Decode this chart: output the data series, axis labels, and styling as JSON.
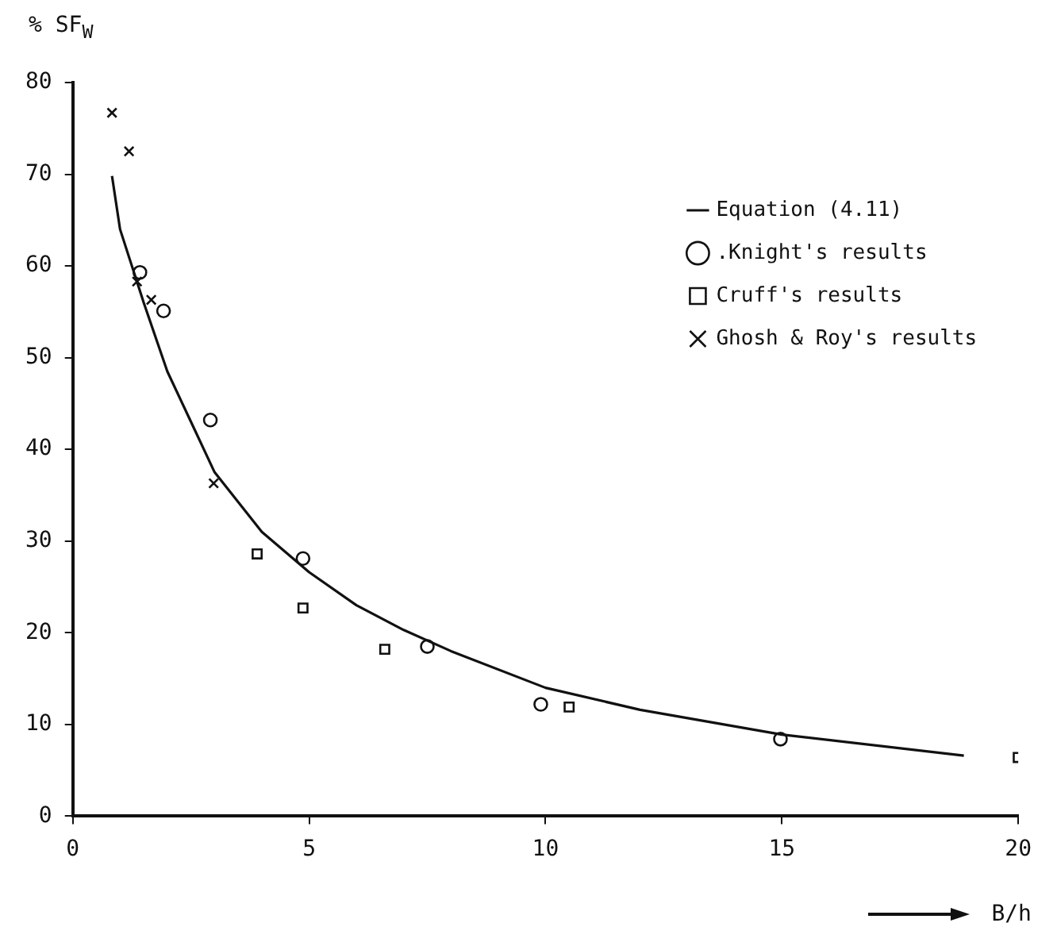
{
  "chart_data": {
    "type": "scatter",
    "xlabel": "B/h",
    "ylabel": "% SF$_{W}$",
    "xlim": [
      0,
      20
    ],
    "xticks": [
      0,
      5,
      10,
      15,
      20
    ],
    "ylim": [
      0,
      80
    ],
    "yticks": [
      0,
      10,
      20,
      30,
      40,
      50,
      60,
      70,
      80
    ],
    "grid": false,
    "legend": "top right",
    "series": [
      {
        "name": "Equation (4.11)",
        "type": "line",
        "color": "#111111",
        "marker": "none",
        "line_style": "solid",
        "x": [
          0.83,
          1,
          1.5,
          2,
          2.5,
          3,
          4,
          5,
          6,
          7,
          8,
          10,
          12,
          15,
          18.85
        ],
        "values": [
          69.8,
          64,
          56,
          48.5,
          43,
          37.5,
          31,
          26.6,
          23,
          20.3,
          18,
          14,
          11.6,
          8.9,
          6.6
        ]
      },
      {
        "name": ".Knight's results",
        "type": "scatter",
        "color": "#111111",
        "marker": "circle",
        "x": [
          1.42,
          1.92,
          2.91,
          4.87,
          7.5,
          9.9,
          14.97
        ],
        "values": [
          59.3,
          55.1,
          43.2,
          28.1,
          18.5,
          12.2,
          8.4
        ]
      },
      {
        "name": "Cruff's results",
        "type": "scatter",
        "color": "#111111",
        "marker": "square",
        "x": [
          3.9,
          4.87,
          6.6,
          10.5,
          20
        ],
        "values": [
          28.6,
          22.7,
          18.2,
          11.9,
          6.4
        ]
      },
      {
        "name": "Ghosh & Roy's results",
        "type": "scatter",
        "color": "#111111",
        "marker": "cross",
        "x": [
          0.83,
          1.19,
          1.36,
          1.66,
          2.98
        ],
        "values": [
          76.7,
          72.5,
          58.3,
          56.3,
          36.3
        ]
      }
    ]
  }
}
